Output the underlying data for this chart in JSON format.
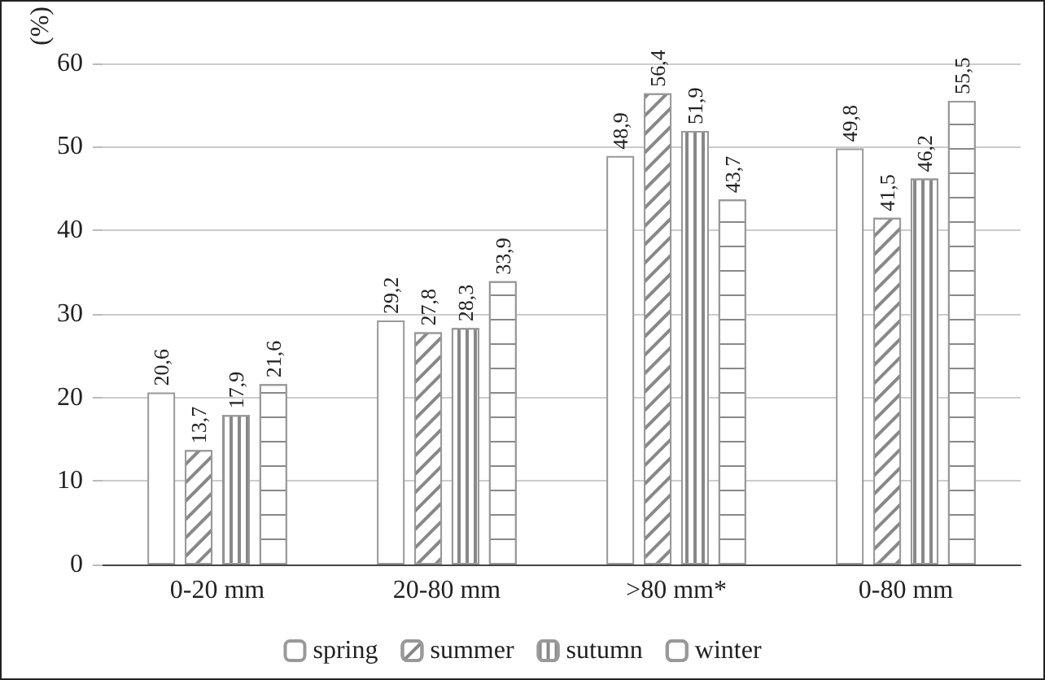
{
  "chart_data": {
    "type": "bar",
    "ylabel": "(%)",
    "categories": [
      "0-20 mm",
      "20-80 mm",
      ">80 mm*",
      "0-80 mm"
    ],
    "series": [
      {
        "name": "spring",
        "color": "#ffffff",
        "values": [
          20.6,
          29.2,
          48.9,
          49.8
        ],
        "value_labels": [
          "20,6",
          "29,2",
          "48,9",
          "49,8"
        ]
      },
      {
        "name": "summer",
        "color": "#ffffff",
        "values": [
          13.7,
          27.8,
          56.4,
          41.5
        ],
        "value_labels": [
          "13,7",
          "27,8",
          "56,4",
          "41,5"
        ]
      },
      {
        "name": "sutumn",
        "color": "#ffffff",
        "values": [
          17.9,
          28.3,
          51.9,
          46.2
        ],
        "value_labels": [
          "17,9",
          "28,3",
          "51,9",
          "46,2"
        ]
      },
      {
        "name": "winter",
        "color": "#ffffff",
        "values": [
          21.6,
          33.9,
          43.7,
          55.5
        ],
        "value_labels": [
          "21,6",
          "33,9",
          "43,7",
          "55,5"
        ]
      }
    ],
    "ylim": [
      0,
      60
    ],
    "yticks": [
      0,
      10,
      20,
      30,
      40,
      50,
      60
    ],
    "grid": "y",
    "legend": "bottom"
  }
}
